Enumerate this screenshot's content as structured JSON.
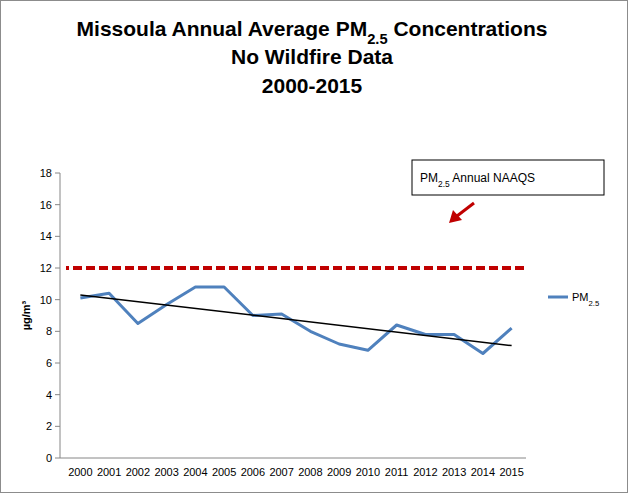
{
  "chart_data": {
    "type": "line",
    "title": [
      "Missoula Annual Average PM2.5 Concentrations",
      "No Wildfire Data",
      "2000-2015"
    ],
    "y_label": "µg/m³",
    "categories": [
      "2000",
      "2001",
      "2002",
      "2003",
      "2004",
      "2005",
      "2006",
      "2007",
      "2008",
      "2009",
      "2010",
      "2011",
      "2012",
      "2013",
      "2014",
      "2015"
    ],
    "series": [
      {
        "name": "PM2.5",
        "color": "#4f81bd",
        "values": [
          10.1,
          10.4,
          8.5,
          9.7,
          10.8,
          10.8,
          9.0,
          9.1,
          8.0,
          7.2,
          6.8,
          8.4,
          7.8,
          7.8,
          6.6,
          8.2
        ]
      }
    ],
    "trend": {
      "color": "#000000",
      "values": [
        10.3,
        7.1
      ]
    },
    "reference_line": {
      "value": 12,
      "label": "PM2.5 Annual NAAQS",
      "color": "#c00000",
      "line_style": "dashed"
    },
    "ylim": [
      0,
      18
    ],
    "yticks": [
      0,
      2,
      4,
      6,
      8,
      10,
      12,
      14,
      16,
      18
    ],
    "grid": false,
    "legend": "right"
  }
}
